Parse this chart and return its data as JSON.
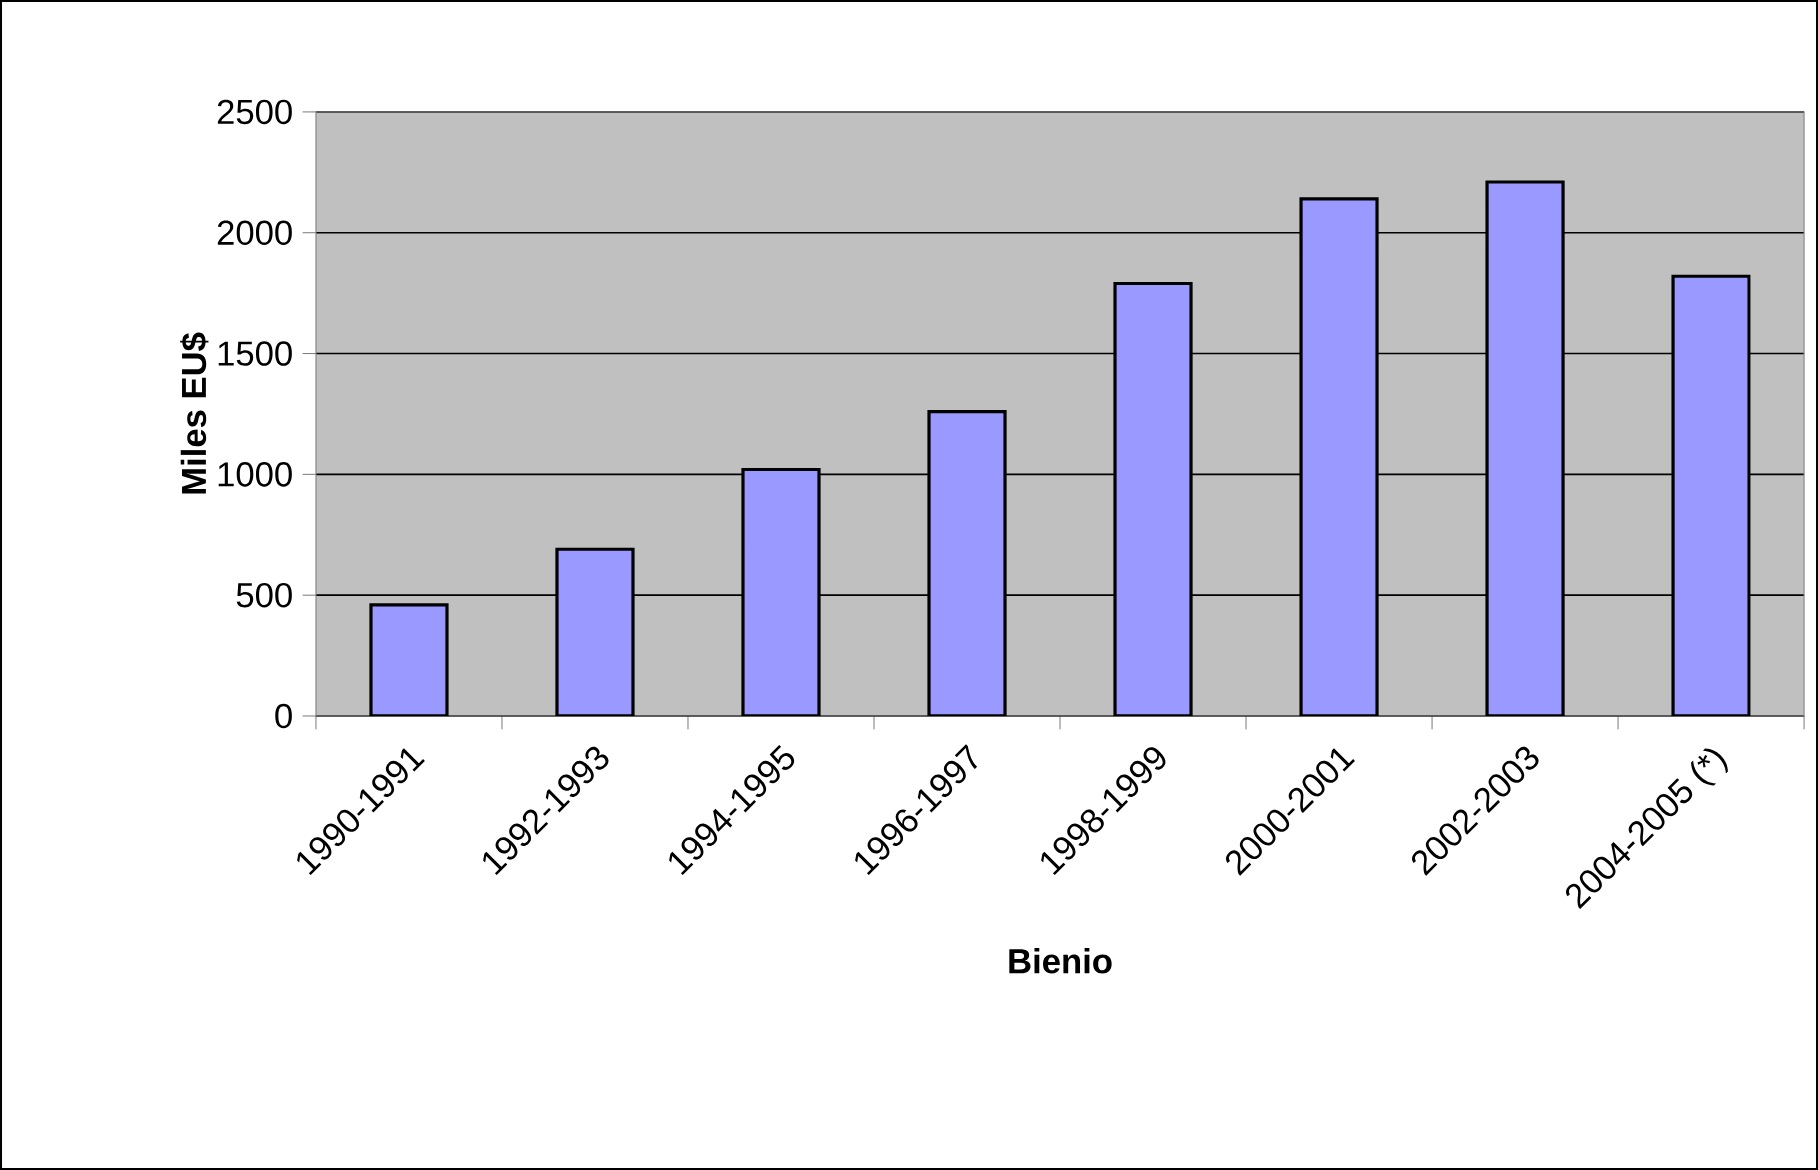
{
  "chart_data": {
    "type": "bar",
    "xlabel": "Bienio",
    "ylabel": "Miles EU$",
    "categories": [
      "1990-1991",
      "1992-1993",
      "1994-1995",
      "1996-1997",
      "1998-1999",
      "2000-2001",
      "2002-2003",
      "2004-2005 (*)"
    ],
    "values": [
      460,
      690,
      1020,
      1260,
      1790,
      2140,
      2210,
      1820
    ],
    "color": "#9999ff",
    "ylim": [
      0,
      2500
    ],
    "yticks": [
      0,
      500,
      1000,
      1500,
      2000,
      2500
    ],
    "grid": "y"
  }
}
